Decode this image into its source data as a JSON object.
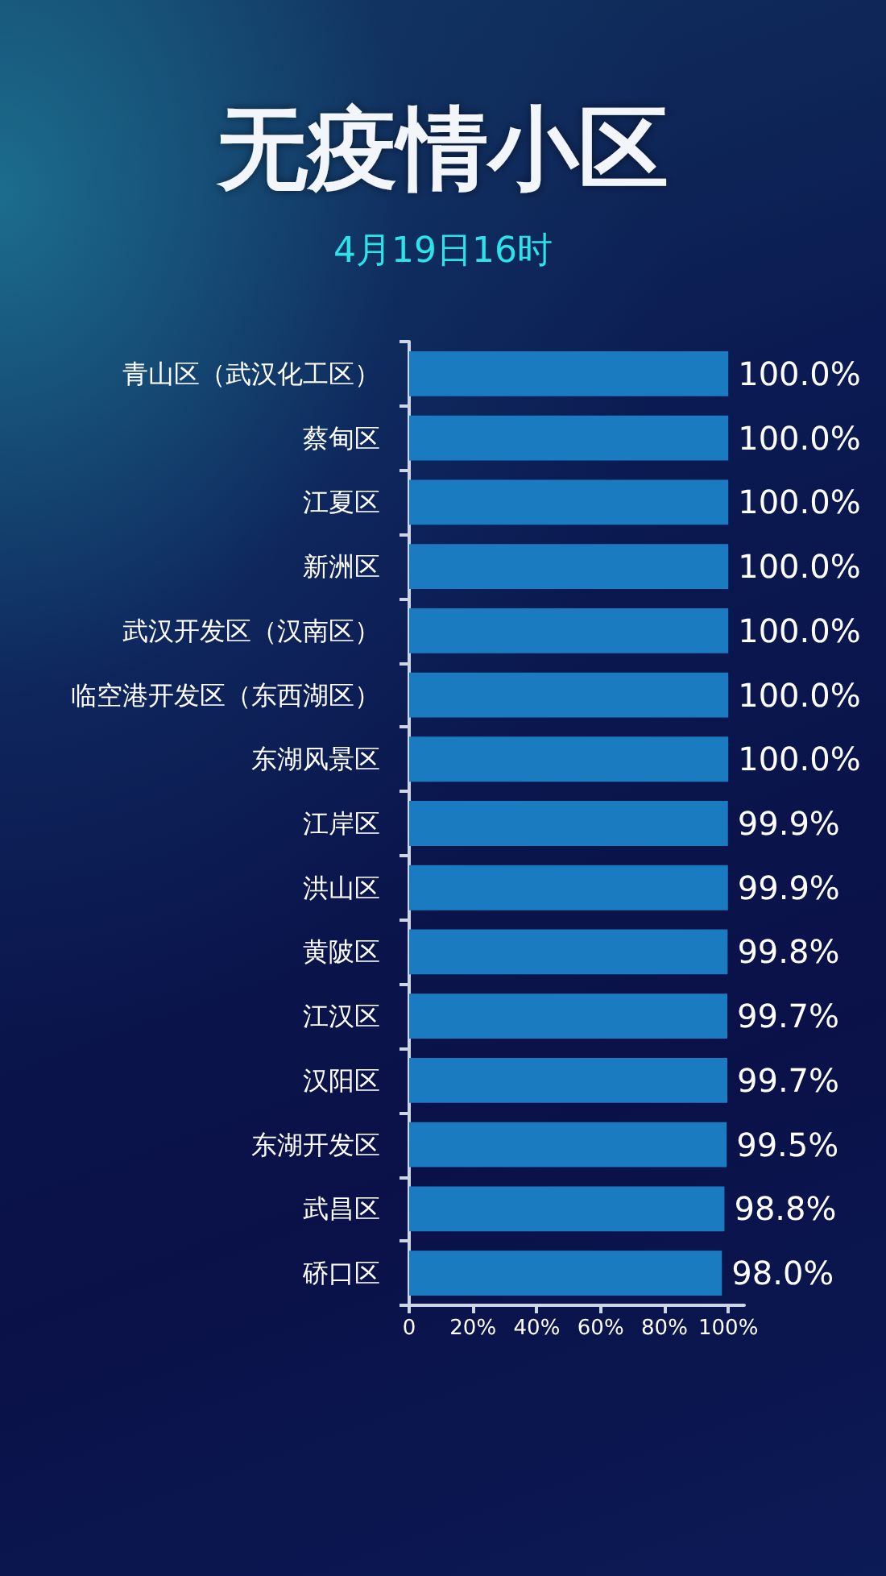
{
  "chart_data": {
    "type": "bar",
    "orientation": "horizontal",
    "title": "无疫情小区",
    "subtitle": "4月19日16时",
    "categories": [
      "青山区（武汉化工区）",
      "蔡甸区",
      "江夏区",
      "新洲区",
      "武汉开发区（汉南区）",
      "临空港开发区（东西湖区）",
      "东湖风景区",
      "江岸区",
      "洪山区",
      "黄陂区",
      "江汉区",
      "汉阳区",
      "东湖开发区",
      "武昌区",
      "硚口区"
    ],
    "values": [
      100,
      100,
      100,
      100,
      100,
      100,
      100,
      99.9,
      99.9,
      99.8,
      99.7,
      99.7,
      99.5,
      98.8,
      98.0
    ],
    "value_labels": [
      "100.0%",
      "100.0%",
      "100.0%",
      "100.0%",
      "100.0%",
      "100.0%",
      "100.0%",
      "99.9%",
      "99.9%",
      "99.8%",
      "99.7%",
      "99.7%",
      "99.5%",
      "98.8%",
      "98.0%"
    ],
    "color": "#1b7bc0",
    "xlim": [
      0,
      105
    ],
    "xticks": [
      {
        "value": 0,
        "label": "0"
      },
      {
        "value": 20,
        "label": "20%"
      },
      {
        "value": 40,
        "label": "40%"
      },
      {
        "value": 60,
        "label": "60%"
      },
      {
        "value": 80,
        "label": "80%"
      },
      {
        "value": 100,
        "label": "100%"
      }
    ]
  }
}
